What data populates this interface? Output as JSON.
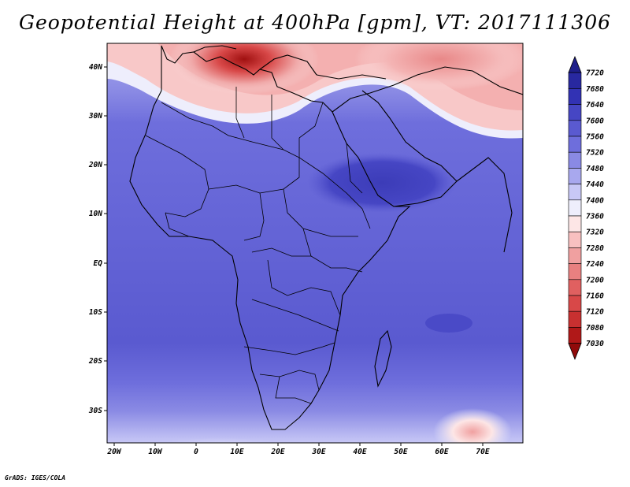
{
  "title": "Geopotential Height at 400hPa [gpm], VT: 2017111306",
  "credit": "GrADS: IGES/COLA",
  "lat_labels": [
    "40N",
    "30N",
    "20N",
    "10N",
    "EQ",
    "10S",
    "20S",
    "30S"
  ],
  "lon_labels": [
    "20W",
    "10W",
    "0",
    "10E",
    "20E",
    "30E",
    "40E",
    "50E",
    "60E",
    "70E"
  ],
  "colorbar": {
    "levels": [
      "7720",
      "7680",
      "7640",
      "7600",
      "7560",
      "7520",
      "7480",
      "7440",
      "7400",
      "7360",
      "7320",
      "7280",
      "7240",
      "7200",
      "7160",
      "7120",
      "7080",
      "7030"
    ],
    "colors": [
      "#1e1e8a",
      "#2828a0",
      "#3232b4",
      "#4646c4",
      "#5a5ad0",
      "#6e6edc",
      "#8a8ae4",
      "#a8a8ee",
      "#c8c8f6",
      "#eeeefc",
      "#fde6e6",
      "#f8c0c0",
      "#f0a0a0",
      "#e88080",
      "#e06060",
      "#d84848",
      "#c83030",
      "#b01818",
      "#900a0a"
    ]
  }
}
